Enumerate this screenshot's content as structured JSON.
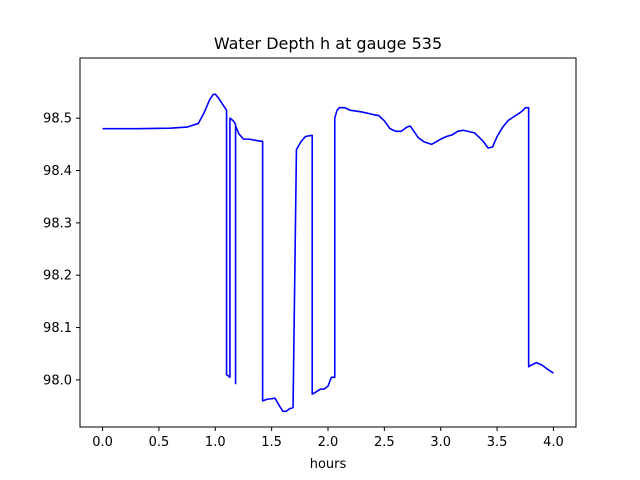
{
  "chart_data": {
    "type": "line",
    "title": "Water Depth h at gauge 535",
    "xlabel": "hours",
    "ylabel": "",
    "xlim": [
      -0.2,
      4.2
    ],
    "ylim": [
      97.91,
      98.615
    ],
    "grid": false,
    "legend": "none",
    "xticks": [
      0.0,
      0.5,
      1.0,
      1.5,
      2.0,
      2.5,
      3.0,
      3.5,
      4.0
    ],
    "xtick_labels": [
      "0.0",
      "0.5",
      "1.0",
      "1.5",
      "2.0",
      "2.5",
      "3.0",
      "3.5",
      "4.0"
    ],
    "yticks": [
      98.0,
      98.1,
      98.2,
      98.3,
      98.4,
      98.5
    ],
    "ytick_labels": [
      "98.0",
      "98.1",
      "98.2",
      "98.3",
      "98.4",
      "98.5"
    ],
    "series": [
      {
        "color": "#0000ff",
        "x": [
          0.0,
          0.3,
          0.6,
          0.75,
          0.85,
          0.9,
          0.95,
          0.98,
          1.0,
          1.03,
          1.07,
          1.1,
          1.1,
          1.13,
          1.13,
          1.16,
          1.18,
          1.18,
          1.18,
          1.21,
          1.25,
          1.3,
          1.35,
          1.4,
          1.42,
          1.42,
          1.46,
          1.5,
          1.53,
          1.57,
          1.6,
          1.63,
          1.66,
          1.69,
          1.72,
          1.72,
          1.76,
          1.8,
          1.85,
          1.86,
          1.86,
          1.88,
          1.93,
          1.97,
          2.0,
          2.03,
          2.05,
          2.06,
          2.06,
          2.08,
          2.1,
          2.15,
          2.2,
          2.3,
          2.4,
          2.45,
          2.5,
          2.55,
          2.6,
          2.65,
          2.7,
          2.73,
          2.8,
          2.85,
          2.92,
          3.0,
          3.05,
          3.1,
          3.15,
          3.2,
          3.3,
          3.38,
          3.42,
          3.46,
          3.5,
          3.55,
          3.6,
          3.65,
          3.7,
          3.73,
          3.75,
          3.78,
          3.78,
          3.8,
          3.85,
          3.9,
          3.95,
          4.0
        ],
        "y": [
          98.48,
          98.48,
          98.481,
          98.483,
          98.49,
          98.51,
          98.535,
          98.545,
          98.546,
          98.538,
          98.525,
          98.515,
          98.01,
          98.005,
          98.5,
          98.495,
          98.488,
          97.993,
          98.485,
          98.47,
          98.46,
          98.46,
          98.458,
          98.456,
          98.456,
          97.96,
          97.963,
          97.964,
          97.965,
          97.95,
          97.94,
          97.94,
          97.945,
          97.947,
          98.44,
          98.44,
          98.455,
          98.465,
          98.467,
          98.467,
          97.973,
          97.975,
          97.982,
          97.983,
          97.988,
          98.005,
          98.005,
          98.005,
          98.5,
          98.515,
          98.52,
          98.52,
          98.515,
          98.512,
          98.507,
          98.505,
          98.495,
          98.48,
          98.475,
          98.475,
          98.483,
          98.485,
          98.463,
          98.455,
          98.45,
          98.46,
          98.465,
          98.468,
          98.475,
          98.477,
          98.472,
          98.455,
          98.443,
          98.445,
          98.465,
          98.483,
          98.496,
          98.503,
          98.51,
          98.515,
          98.52,
          98.52,
          98.025,
          98.028,
          98.033,
          98.028,
          98.02,
          98.013
        ]
      }
    ]
  }
}
